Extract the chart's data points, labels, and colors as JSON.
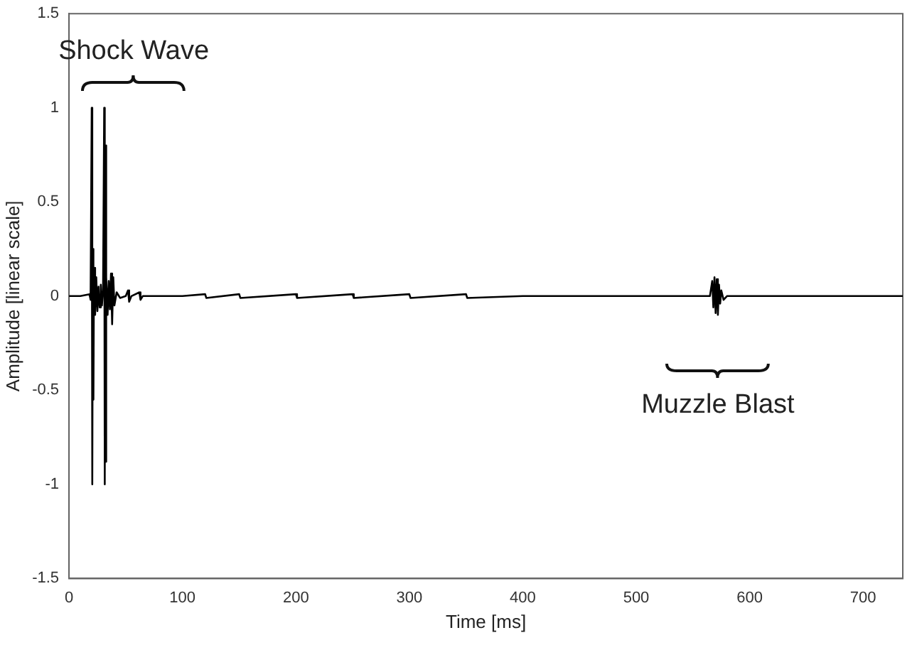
{
  "chart_data": {
    "type": "line",
    "xlabel": "Time [ms]",
    "ylabel": "Amplitude [linear scale]",
    "xlim": [
      0,
      735
    ],
    "xticks": [
      0,
      100,
      200,
      300,
      400,
      500,
      600,
      700
    ],
    "ylim": [
      -1.5,
      1.5
    ],
    "yticks": [
      -1.5,
      -1,
      -0.5,
      0,
      0.5,
      1,
      1.5
    ],
    "grid": false,
    "legend": false,
    "marker": "none",
    "line_style": "solid",
    "annotations": [
      "Shock Wave",
      "Muzzle Blast"
    ],
    "series": [
      {
        "color": "#000000",
        "x": [
          0,
          10,
          18,
          19,
          20,
          20.5,
          21,
          21.5,
          22,
          23,
          24,
          25,
          26,
          27,
          28,
          29,
          30,
          31,
          31.5,
          32,
          32.5,
          33,
          34,
          35,
          36,
          37,
          38,
          39,
          40,
          42,
          45,
          50,
          52,
          53,
          55,
          62,
          63,
          65,
          100,
          120,
          121,
          150,
          151,
          200,
          201,
          250,
          251,
          300,
          301,
          350,
          351,
          400,
          565,
          567,
          568,
          569,
          570,
          571,
          572,
          573,
          574,
          575,
          577,
          580,
          735
        ],
        "values": [
          0,
          0,
          0.01,
          -0.02,
          1,
          -1,
          0.25,
          -0.55,
          0.15,
          -0.1,
          0.1,
          -0.08,
          0.05,
          -0.06,
          0.06,
          -0.05,
          0.03,
          1,
          -1,
          0.8,
          -0.88,
          0.1,
          -0.1,
          0.08,
          -0.07,
          0.12,
          -0.15,
          0.1,
          -0.05,
          0.02,
          -0.01,
          0,
          0.03,
          -0.03,
          0,
          0.02,
          -0.02,
          0,
          0,
          0.01,
          -0.01,
          0.01,
          -0.01,
          0.01,
          -0.01,
          0.01,
          -0.01,
          0.01,
          -0.01,
          0.01,
          -0.01,
          0,
          0,
          0.08,
          -0.06,
          0.1,
          -0.09,
          0.09,
          -0.1,
          0.06,
          -0.04,
          0.03,
          -0.02,
          0,
          0
        ]
      }
    ]
  }
}
